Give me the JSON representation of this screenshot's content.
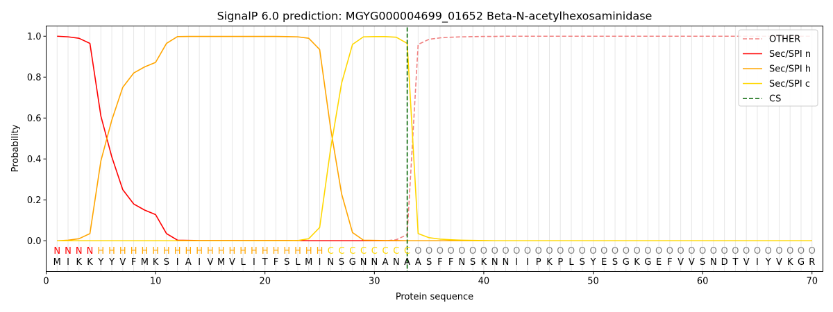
{
  "chart_data": {
    "type": "line",
    "title": "SignalP 6.0 prediction: MGYG000004699_01652 Beta-N-acetylhexosaminidase",
    "xlabel": "Protein sequence",
    "ylabel": "Probability",
    "xlim": [
      0,
      71
    ],
    "ylim": [
      -0.15,
      1.05
    ],
    "x_ticks": [
      0,
      10,
      20,
      30,
      40,
      50,
      60,
      70
    ],
    "y_ticks": [
      0.0,
      0.2,
      0.4,
      0.6,
      0.8,
      1.0
    ],
    "x_tick_labels": [
      "0",
      "10",
      "20",
      "30",
      "40",
      "50",
      "60",
      "70"
    ],
    "y_tick_labels": [
      "0.0",
      "0.2",
      "0.4",
      "0.6",
      "0.8",
      "1.0"
    ],
    "grid": "vertical lines at each residue",
    "legend_position": "top-right",
    "sequence": "MIKKYYVFMKSIAIVMVLITFSLMINSGNNANAASFFNSKNNIIPKPLSYESGKGEFVVSNDTVIYVKGR",
    "labels": "NNNNHHHHHHHHHHHHHHHHHHHHHCCCCCCCCOOOOOOOOOOOOOOOOOOOOOOOOOOOOOOOOOOOOO",
    "label_colors": {
      "N": "#ff0000",
      "H": "#ffa500",
      "C": "#ffd700",
      "O": "#808080"
    },
    "cleavage_site": 33,
    "series": [
      {
        "name": "OTHER",
        "color": "#f08080",
        "dash": "dashed",
        "values": [
          0,
          0,
          0,
          0,
          0,
          0,
          0,
          0,
          0,
          0,
          0,
          0,
          0,
          0,
          0,
          0,
          0,
          0,
          0,
          0,
          0,
          0,
          0,
          0,
          0,
          0,
          0,
          0,
          0,
          0,
          0,
          0.005,
          0.03,
          0.96,
          0.985,
          0.992,
          0.995,
          0.997,
          0.998,
          0.999,
          0.999,
          1,
          1,
          1,
          1,
          1,
          1,
          1,
          1,
          1,
          1,
          1,
          1,
          1,
          1,
          1,
          1,
          1,
          1,
          1,
          1,
          1,
          1,
          1,
          1,
          1,
          1,
          1,
          1,
          1
        ]
      },
      {
        "name": "Sec/SPI n",
        "color": "#ff0000",
        "dash": "solid",
        "values": [
          1.0,
          0.997,
          0.99,
          0.965,
          0.61,
          0.41,
          0.25,
          0.18,
          0.15,
          0.128,
          0.035,
          0.003,
          0.002,
          0.001,
          0.001,
          0.001,
          0.001,
          0.001,
          0.001,
          0.001,
          0.001,
          0.001,
          0.001,
          0,
          0,
          0,
          0,
          0,
          0,
          0,
          0,
          0,
          0,
          0,
          0,
          0,
          0,
          0,
          0,
          0,
          0,
          0,
          0,
          0,
          0,
          0,
          0,
          0,
          0,
          0,
          0,
          0,
          0,
          0,
          0,
          0,
          0,
          0,
          0,
          0,
          0,
          0,
          0,
          0,
          0,
          0,
          0,
          0,
          0,
          0
        ]
      },
      {
        "name": "Sec/SPI h",
        "color": "#ffa500",
        "dash": "solid",
        "values": [
          0,
          0.003,
          0.01,
          0.035,
          0.39,
          0.59,
          0.75,
          0.82,
          0.85,
          0.872,
          0.965,
          0.998,
          0.999,
          0.999,
          0.999,
          0.999,
          0.999,
          0.999,
          0.999,
          0.999,
          0.999,
          0.998,
          0.997,
          0.99,
          0.935,
          0.55,
          0.23,
          0.04,
          0.003,
          0.002,
          0.001,
          0.001,
          0,
          0,
          0,
          0,
          0,
          0,
          0,
          0,
          0,
          0,
          0,
          0,
          0,
          0,
          0,
          0,
          0,
          0,
          0,
          0,
          0,
          0,
          0,
          0,
          0,
          0,
          0,
          0,
          0,
          0,
          0,
          0,
          0,
          0,
          0,
          0,
          0,
          0
        ]
      },
      {
        "name": "Sec/SPI c",
        "color": "#ffd700",
        "dash": "solid",
        "values": [
          0,
          0,
          0,
          0,
          0,
          0,
          0,
          0,
          0,
          0,
          0,
          0,
          0,
          0,
          0,
          0,
          0,
          0,
          0,
          0,
          0,
          0,
          0.001,
          0.01,
          0.065,
          0.45,
          0.77,
          0.96,
          0.997,
          0.998,
          0.998,
          0.995,
          0.965,
          0.035,
          0.015,
          0.008,
          0.005,
          0.003,
          0.002,
          0.001,
          0,
          0,
          0,
          0,
          0,
          0,
          0,
          0,
          0,
          0,
          0,
          0,
          0,
          0,
          0,
          0,
          0,
          0,
          0,
          0,
          0,
          0,
          0,
          0,
          0,
          0,
          0,
          0,
          0,
          0
        ]
      },
      {
        "name": "CS",
        "color": "#006400",
        "dash": "dashed",
        "values": []
      }
    ]
  }
}
